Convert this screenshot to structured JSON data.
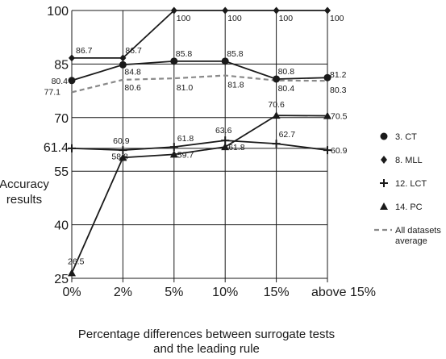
{
  "chart_data": {
    "type": "line",
    "xlabel": [
      "Percentage differences between surrogate tests",
      "and the leading rule"
    ],
    "ylabel": [
      "Accuracy",
      "results"
    ],
    "categories": [
      "0%",
      "2%",
      "5%",
      "10%",
      "15%",
      "above 15%"
    ],
    "y_ticks": [
      25,
      40,
      55,
      61.4,
      70,
      85,
      100
    ],
    "y_tick_labels": [
      "25",
      "40",
      "55",
      "61.4",
      "70",
      "85",
      "100"
    ],
    "ylim": [
      25,
      100
    ],
    "grid": true,
    "legend_position": "right",
    "series": [
      {
        "name": "3. CT",
        "marker": "circle",
        "values": [
          80.4,
          84.8,
          85.8,
          85.8,
          80.8,
          81.2
        ],
        "labels": [
          "80.4",
          "84.8",
          "85.8",
          "85.8",
          "80.8",
          "81.2"
        ]
      },
      {
        "name": "8. MLL",
        "marker": "diamond",
        "values": [
          86.7,
          86.7,
          100,
          100,
          100,
          100
        ],
        "labels": [
          "86.7",
          "86.7",
          "100",
          "100",
          "100",
          "100"
        ]
      },
      {
        "name": "12. LCT",
        "marker": "plus",
        "values": [
          61.4,
          60.9,
          61.8,
          63.6,
          62.7,
          60.9
        ],
        "labels": [
          "",
          "60.9",
          "61.8",
          "63.6",
          "62.7",
          "60.9"
        ]
      },
      {
        "name": "14. PC",
        "marker": "triangle",
        "values": [
          26.5,
          58.8,
          59.7,
          61.8,
          70.6,
          70.5
        ],
        "labels": [
          "26.5",
          "58.8",
          "59.7",
          "61.8",
          "70.6",
          "70.5"
        ]
      },
      {
        "name": "All datasets average",
        "marker": "dashed",
        "values": [
          77.1,
          80.6,
          81.0,
          81.8,
          80.4,
          80.3
        ],
        "labels": [
          "77.1",
          "80.6",
          "81.0",
          "81.8",
          "80.4",
          "80.3"
        ]
      }
    ],
    "legend_labels": {
      "ct": "3. CT",
      "mll": "8. MLL",
      "lct": "12. LCT",
      "pc": "14. PC",
      "avg": [
        "All datasets",
        "average"
      ]
    }
  }
}
